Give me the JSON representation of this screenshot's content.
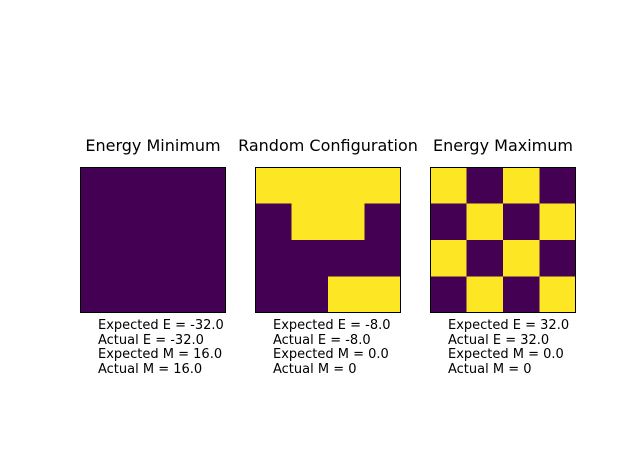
{
  "chart_data": [
    {
      "type": "heatmap",
      "title": "Energy Minimum",
      "rows": 4,
      "cols": 4,
      "grid": [
        [
          0,
          0,
          0,
          0
        ],
        [
          0,
          0,
          0,
          0
        ],
        [
          0,
          0,
          0,
          0
        ],
        [
          0,
          0,
          0,
          0
        ]
      ],
      "stats": {
        "expected_e": "Expected E = -32.0",
        "actual_e": "Actual E = -32.0",
        "expected_m": "Expected M = 16.0",
        "actual_m": "Actual M = 16.0"
      }
    },
    {
      "type": "heatmap",
      "title": "Random Configuration",
      "rows": 4,
      "cols": 4,
      "grid": [
        [
          1,
          1,
          1,
          1
        ],
        [
          0,
          1,
          1,
          0
        ],
        [
          0,
          0,
          0,
          0
        ],
        [
          0,
          0,
          1,
          1
        ]
      ],
      "stats": {
        "expected_e": "Expected E = -8.0",
        "actual_e": "Actual E = -8.0",
        "expected_m": "Expected M = 0.0",
        "actual_m": "Actual M = 0"
      }
    },
    {
      "type": "heatmap",
      "title": "Energy Maximum",
      "rows": 4,
      "cols": 4,
      "grid": [
        [
          1,
          0,
          1,
          0
        ],
        [
          0,
          1,
          0,
          1
        ],
        [
          1,
          0,
          1,
          0
        ],
        [
          0,
          1,
          0,
          1
        ]
      ],
      "stats": {
        "expected_e": "Expected E = 32.0",
        "actual_e": "Actual E = 32.0",
        "expected_m": "Expected M = 0.0",
        "actual_m": "Actual M = 0"
      }
    }
  ],
  "colors": {
    "low": "#440154",
    "high": "#fde725",
    "frame": "#000000"
  }
}
